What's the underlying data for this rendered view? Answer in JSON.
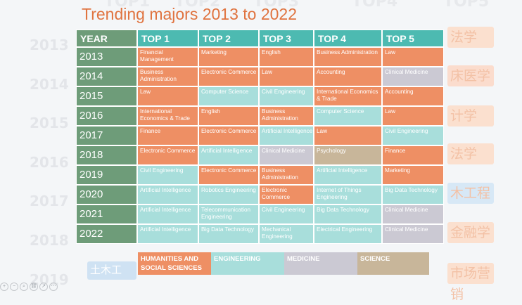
{
  "title": "Trending majors 2013 to 2022",
  "headers": [
    "YEAR",
    "TOP 1",
    "TOP 2",
    "TOP 3",
    "TOP 4",
    "TOP 5"
  ],
  "rows": [
    {
      "year": "2013",
      "cells": [
        {
          "text": "Financial Management",
          "cat": "human"
        },
        {
          "text": "Marketing",
          "cat": "human"
        },
        {
          "text": "English",
          "cat": "human"
        },
        {
          "text": "Business Administration",
          "cat": "human"
        },
        {
          "text": "Law",
          "cat": "human"
        }
      ]
    },
    {
      "year": "2014",
      "cells": [
        {
          "text": "Business Administration",
          "cat": "human"
        },
        {
          "text": "Electronic Commerce",
          "cat": "human"
        },
        {
          "text": "Law",
          "cat": "human"
        },
        {
          "text": "Accounting",
          "cat": "human"
        },
        {
          "text": "Clinical Medicine",
          "cat": "med"
        }
      ]
    },
    {
      "year": "2015",
      "cells": [
        {
          "text": "Law",
          "cat": "human"
        },
        {
          "text": "Computer Science",
          "cat": "eng"
        },
        {
          "text": "Civil Engineering",
          "cat": "eng"
        },
        {
          "text": "International Economics & Trade",
          "cat": "human"
        },
        {
          "text": "Accounting",
          "cat": "human"
        }
      ]
    },
    {
      "year": "2016",
      "cells": [
        {
          "text": "International Economics & Trade",
          "cat": "human"
        },
        {
          "text": "English",
          "cat": "human"
        },
        {
          "text": "Business Administration",
          "cat": "human"
        },
        {
          "text": "Computer Science",
          "cat": "eng"
        },
        {
          "text": "Law",
          "cat": "human"
        }
      ]
    },
    {
      "year": "2017",
      "cells": [
        {
          "text": "Finance",
          "cat": "human"
        },
        {
          "text": "Electronic Commerce",
          "cat": "human"
        },
        {
          "text": "Artificial Intelligence",
          "cat": "eng"
        },
        {
          "text": "Law",
          "cat": "human"
        },
        {
          "text": "Civil Engineering",
          "cat": "eng"
        }
      ]
    },
    {
      "year": "2018",
      "cells": [
        {
          "text": "Electronic Commerce",
          "cat": "human"
        },
        {
          "text": "Artificial Intelligence",
          "cat": "eng"
        },
        {
          "text": "Clinical Medicine",
          "cat": "med"
        },
        {
          "text": "Psychology",
          "cat": "sci"
        },
        {
          "text": "Finance",
          "cat": "human"
        }
      ]
    },
    {
      "year": "2019",
      "cells": [
        {
          "text": "Civil Engineering",
          "cat": "eng"
        },
        {
          "text": "Electronic Commerce",
          "cat": "human"
        },
        {
          "text": "Business Administration",
          "cat": "human"
        },
        {
          "text": "Artificial Intelligence",
          "cat": "eng"
        },
        {
          "text": "Marketing",
          "cat": "human"
        }
      ]
    },
    {
      "year": "2020",
      "cells": [
        {
          "text": "Artificial Intelligence",
          "cat": "eng"
        },
        {
          "text": "Robotics Engineering",
          "cat": "eng"
        },
        {
          "text": "Electronic Commerce",
          "cat": "human"
        },
        {
          "text": "Internet of Things Engineering",
          "cat": "eng"
        },
        {
          "text": "Big Data Technology",
          "cat": "eng"
        }
      ]
    },
    {
      "year": "2021",
      "cells": [
        {
          "text": "Artificial Intelligence",
          "cat": "eng"
        },
        {
          "text": "Telecommunication Engineering",
          "cat": "eng"
        },
        {
          "text": "Civil Engineering",
          "cat": "eng"
        },
        {
          "text": "Big Data Technology",
          "cat": "eng"
        },
        {
          "text": "Clinical Medicine",
          "cat": "med"
        }
      ]
    },
    {
      "year": "2022",
      "cells": [
        {
          "text": "Artificial Intelligence",
          "cat": "eng"
        },
        {
          "text": "Big Data Technology",
          "cat": "eng"
        },
        {
          "text": "Mechanical Engineering",
          "cat": "eng"
        },
        {
          "text": "Electrical Engineering",
          "cat": "eng"
        },
        {
          "text": "Clinical Medicine",
          "cat": "med"
        }
      ]
    }
  ],
  "legend": [
    {
      "label": "HUMANITIES AND SOCIAL SCIENCES",
      "cat": "human"
    },
    {
      "label": "ENGINEERING",
      "cat": "eng"
    },
    {
      "label": "MEDICINE",
      "cat": "med"
    },
    {
      "label": "SCIENCE",
      "cat": "sci"
    }
  ],
  "colors": {
    "title": "#e0733f",
    "human": "#ee8f64",
    "eng": "#a8dedb",
    "med": "#cbc9d3",
    "sci": "#c8b69a",
    "year_header": "#6e9c79",
    "top_header": "#4dbab1"
  },
  "background": {
    "years": [
      "2013",
      "2014",
      "2015",
      "2016",
      "2017",
      "2018",
      "2019"
    ],
    "tops": [
      "TOP1",
      "TOP2",
      "TOP3",
      "TOP4",
      "TOP5"
    ],
    "right_labels": [
      "法学",
      "床医学",
      "计学",
      "法学",
      "木工程",
      "金融学",
      "市场营销"
    ],
    "bottom_chip": "土木工"
  },
  "icons": [
    "zoom-in-icon",
    "zoom-out-icon",
    "zoom-icon",
    "link-icon",
    "share-icon",
    "more-icon"
  ]
}
